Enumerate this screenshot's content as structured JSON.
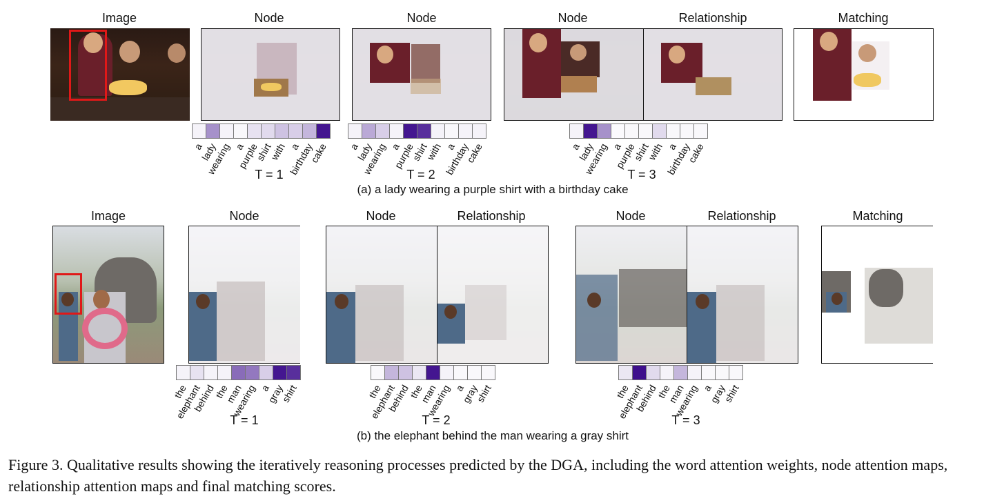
{
  "figure_a": {
    "headers": [
      "Image",
      "Node",
      "Node",
      "Node",
      "Relationship",
      "Matching"
    ],
    "strips": [
      {
        "t_label": "T = 1",
        "words": [
          "a",
          "lady",
          "wearing",
          "a",
          "purple",
          "shirt",
          "with",
          "a",
          "birthday",
          "cake"
        ],
        "weights": [
          0.05,
          0.45,
          0.05,
          0.03,
          0.12,
          0.15,
          0.25,
          0.2,
          0.3,
          0.95
        ]
      },
      {
        "t_label": "T = 2",
        "words": [
          "a",
          "lady",
          "wearing",
          "a",
          "purple",
          "shirt",
          "with",
          "a",
          "birthday",
          "cake"
        ],
        "weights": [
          0.05,
          0.35,
          0.2,
          0.05,
          0.95,
          0.85,
          0.05,
          0.03,
          0.05,
          0.05
        ]
      },
      {
        "t_label": "T = 3",
        "words": [
          "a",
          "lady",
          "wearing",
          "a",
          "purple",
          "shirt",
          "with",
          "a",
          "birthday",
          "cake"
        ],
        "weights": [
          0.05,
          0.95,
          0.45,
          0.02,
          0.03,
          0.03,
          0.15,
          0.03,
          0.03,
          0.03
        ]
      }
    ],
    "subcaption": "(a) a lady wearing a purple shirt with a birthday cake"
  },
  "figure_b": {
    "headers": [
      "Image",
      "Node",
      "Node",
      "Relationship",
      "Node",
      "Relationship",
      "Matching"
    ],
    "strips": [
      {
        "t_label": "T = 1",
        "words": [
          "the",
          "elephant",
          "behind",
          "the",
          "man",
          "wearing",
          "a",
          "gray",
          "shirt"
        ],
        "weights": [
          0.05,
          0.12,
          0.05,
          0.05,
          0.6,
          0.55,
          0.2,
          0.95,
          0.85
        ]
      },
      {
        "t_label": "T = 2",
        "words": [
          "the",
          "elephant",
          "behind",
          "the",
          "man",
          "wearing",
          "a",
          "gray",
          "shirt"
        ],
        "weights": [
          0.03,
          0.3,
          0.25,
          0.1,
          0.95,
          0.05,
          0.03,
          0.03,
          0.03
        ]
      },
      {
        "t_label": "T = 3",
        "words": [
          "the",
          "elephant",
          "behind",
          "the",
          "man",
          "wearing",
          "a",
          "gray",
          "shirt"
        ],
        "weights": [
          0.1,
          0.98,
          0.15,
          0.05,
          0.3,
          0.05,
          0.03,
          0.03,
          0.03
        ]
      }
    ],
    "subcaption": "(b) the elephant behind the man wearing a gray shirt"
  },
  "caption": "Figure 3. Qualitative results showing the iteratively reasoning processes predicted by the DGA, including the word attention weights, node attention maps, relationship attention maps and final matching scores.",
  "colors": {
    "attention_max": "#3a0a8a",
    "attention_min": "#ffffff",
    "box": "#e01818"
  }
}
